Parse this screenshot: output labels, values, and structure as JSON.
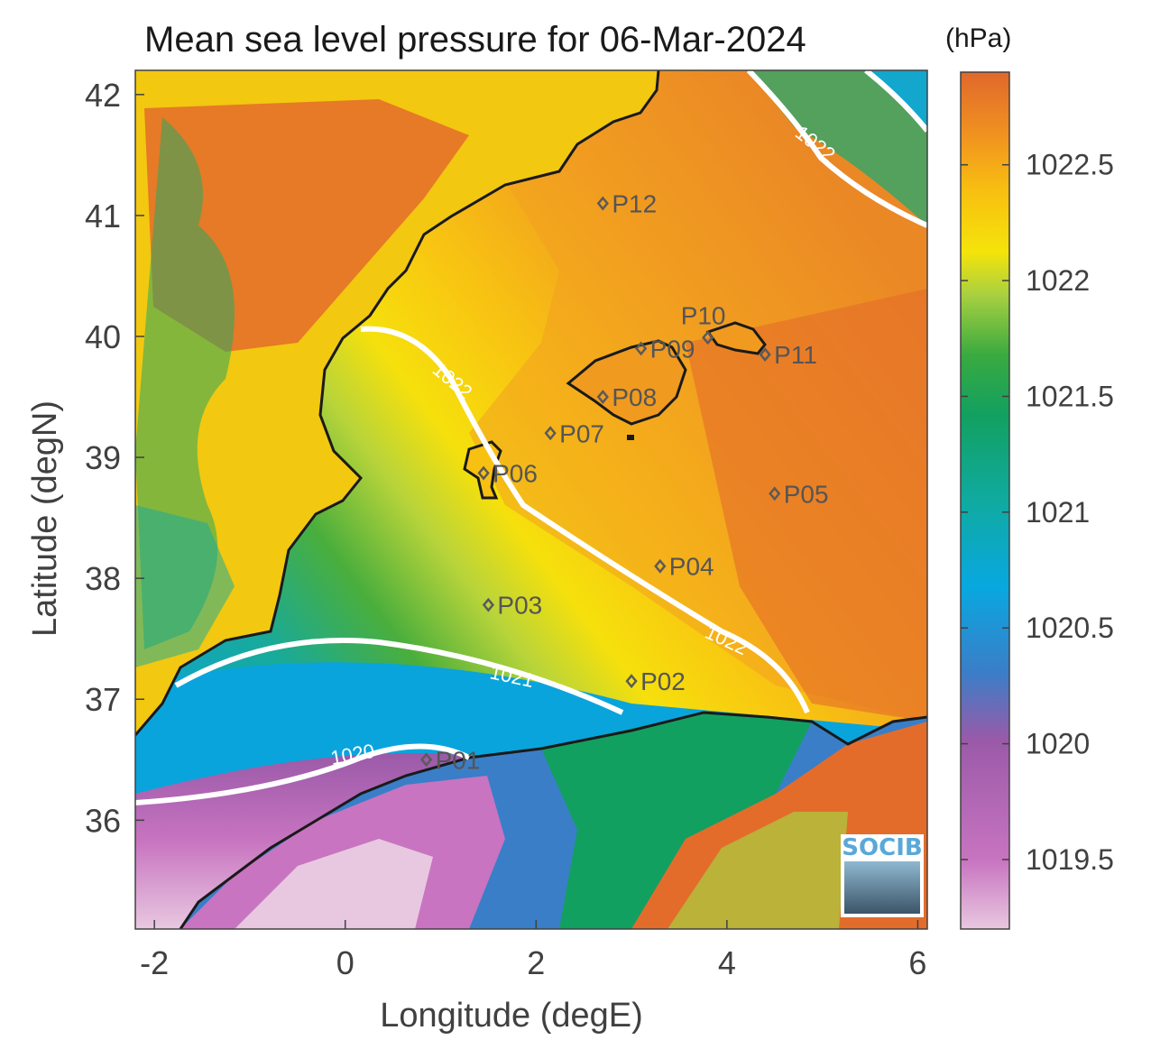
{
  "title": "Mean sea level pressure for 06-Mar-2024",
  "colorbar_unit": "(hPa)",
  "logo_text": "SOCIB",
  "chart_data": {
    "type": "heatmap",
    "title": "Mean sea level pressure for 06-Mar-2024",
    "xlabel": "Longitude (degE)",
    "ylabel": "Latitude (degN)",
    "xlim": [
      -2.2,
      6.1
    ],
    "ylim": [
      35.1,
      42.2
    ],
    "xticks": [
      -2,
      0,
      2,
      4,
      6
    ],
    "yticks": [
      36,
      37,
      38,
      39,
      40,
      41,
      42
    ],
    "colorbar": {
      "label": "(hPa)",
      "range": [
        1019.2,
        1022.9
      ],
      "ticks": [
        1019.5,
        1020,
        1020.5,
        1021,
        1021.5,
        1022,
        1022.5
      ],
      "colors": [
        "#e8c8e0",
        "#c874c0",
        "#9a5aa8",
        "#3a7ec8",
        "#08a8e0",
        "#10aaa0",
        "#12a060",
        "#3aaa40",
        "#a8d040",
        "#f4e40a",
        "#f8c010",
        "#f09020",
        "#e0682c"
      ]
    },
    "contours": [
      {
        "level": 1020,
        "label": "1020"
      },
      {
        "level": 1021,
        "label": "1021"
      },
      {
        "level": 1022,
        "label": "1022"
      }
    ],
    "points": [
      {
        "name": "P01",
        "lon": 0.85,
        "lat": 36.5
      },
      {
        "name": "P02",
        "lon": 3.0,
        "lat": 37.15
      },
      {
        "name": "P03",
        "lon": 1.5,
        "lat": 37.78
      },
      {
        "name": "P04",
        "lon": 3.3,
        "lat": 38.1
      },
      {
        "name": "P05",
        "lon": 4.5,
        "lat": 38.7
      },
      {
        "name": "P06",
        "lon": 1.45,
        "lat": 38.87
      },
      {
        "name": "P07",
        "lon": 2.15,
        "lat": 39.2
      },
      {
        "name": "P08",
        "lon": 2.7,
        "lat": 39.5
      },
      {
        "name": "P09",
        "lon": 3.1,
        "lat": 39.9
      },
      {
        "name": "P10",
        "lon": 3.8,
        "lat": 39.99
      },
      {
        "name": "P11",
        "lon": 4.4,
        "lat": 39.85
      },
      {
        "name": "P12",
        "lon": 2.7,
        "lat": 41.1
      }
    ]
  }
}
